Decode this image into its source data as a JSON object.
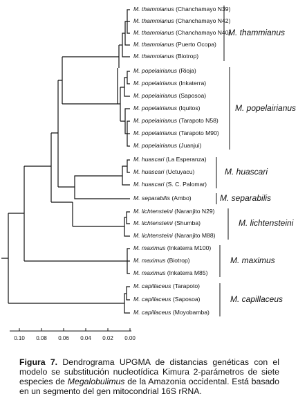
{
  "leaves": [
    {
      "species": "M. thammianus",
      "locality": "(Chanchamayo N39)"
    },
    {
      "species": "M. thammianus",
      "locality": "(Chanchamayo N42)"
    },
    {
      "species": "M. thammianus",
      "locality": "(Chanchamayo N40)"
    },
    {
      "species": "M. thammianus",
      "locality": "(Puerto Ocopa)"
    },
    {
      "species": "M. thammianus",
      "locality": "(Biotrop)"
    },
    {
      "species": "M. popelairianus",
      "locality": "(Rioja)"
    },
    {
      "species": "M. popelairianus",
      "locality": "(Inkaterra)"
    },
    {
      "species": "M. popelairianus",
      "locality": "(Saposoa)"
    },
    {
      "species": "M. popelairianus",
      "locality": "(Iquitos)"
    },
    {
      "species": "M. popelairianus",
      "locality": "(Tarapoto N58)"
    },
    {
      "species": "M. popelairianus",
      "locality": "(Tarapoto M90)"
    },
    {
      "species": "M. popelairianus",
      "locality": "(Juanjui)"
    },
    {
      "species": "M. huascari",
      "locality": "(La Esperanza)"
    },
    {
      "species": "M. huascari",
      "locality": "(Uctuyacu)"
    },
    {
      "species": "M. huascari",
      "locality": "(S. C. Palomar)"
    },
    {
      "species": "M. separabilis",
      "locality": "(Ambo)"
    },
    {
      "species": "M. lichtensteini",
      "locality": "(Naranjito N29)"
    },
    {
      "species": "M. lichtensteini",
      "locality": "(Shumba)"
    },
    {
      "species": "M. lichtensteini",
      "locality": "(Naranjito M88)"
    },
    {
      "species": "M. maximus",
      "locality": "(Inkaterra M100)"
    },
    {
      "species": "M. maximus",
      "locality": "(Biotrop)"
    },
    {
      "species": "M. maximus",
      "locality": "(Inkaterra M85)"
    },
    {
      "species": "M. capillaceus",
      "locality": "(Tarapoto)"
    },
    {
      "species": "M. capillaceus",
      "locality": "(Saposoa)"
    },
    {
      "species": "M. capillaceus",
      "locality": "(Moyobamba)"
    }
  ],
  "clades": [
    "M. thammianus",
    "M. popelairianus",
    "M. huascari",
    "M. separabilis",
    "M. lichtensteini",
    "M. maximus",
    "M. capillaceus"
  ],
  "scale": {
    "ticks": [
      {
        "value": 0.1,
        "label": "0.10"
      },
      {
        "value": 0.08,
        "label": "0.08"
      },
      {
        "value": 0.06,
        "label": "0.06"
      },
      {
        "value": 0.04,
        "label": "0.04"
      },
      {
        "value": 0.02,
        "label": "0.02"
      },
      {
        "value": 0,
        "label": "0.00"
      }
    ]
  },
  "caption": {
    "label": "Figura 7.",
    "text_before": "Dendrograma UPGMA de distancias genéticas con el modelo se substitución nucleotídica Kimura 2-parámetros de siete especies de",
    "italic": "Megalobulimus",
    "text_after": "de la Amazonia occidental. Está basado en un segmento del gen mitocondrial 16S rRNA."
  }
}
